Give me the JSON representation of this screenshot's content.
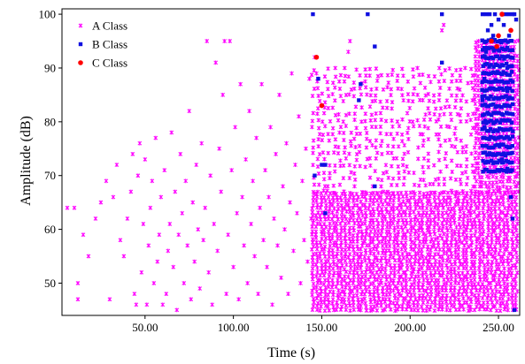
{
  "chart_data": {
    "type": "scatter",
    "xlabel": "Time (s)",
    "ylabel": "Amplitude (dB)",
    "xlim": [
      3,
      262
    ],
    "ylim": [
      44,
      101
    ],
    "xticks": [
      50,
      100,
      150,
      200,
      250
    ],
    "xtick_labels": [
      "50.00",
      "100.00",
      "150.00",
      "200.00",
      "250.00"
    ],
    "yticks": [
      50,
      60,
      70,
      80,
      90,
      100
    ],
    "ytick_labels": [
      "50",
      "60",
      "70",
      "80",
      "90",
      "100"
    ],
    "grid": false,
    "legend_position": "top-left",
    "series": [
      {
        "name": "A Class",
        "color": "#ff00ff",
        "marker": "star",
        "dense_regions": [
          {
            "x": [
              145,
              262
            ],
            "y": [
              45,
              67
            ],
            "x_step": 2.3,
            "y_step": 0.7
          },
          {
            "x": [
              145,
              237
            ],
            "y": [
              67,
              91
            ],
            "x_step": 3.0,
            "y_step": 1.2,
            "density": 0.7
          },
          {
            "x": [
              237,
              262
            ],
            "y": [
              67,
              95
            ],
            "x_step": 2.0,
            "y_step": 0.9
          }
        ],
        "points": [
          [
            6,
            64
          ],
          [
            10,
            64
          ],
          [
            12,
            50
          ],
          [
            12,
            47
          ],
          [
            15,
            59
          ],
          [
            18,
            55
          ],
          [
            22,
            62
          ],
          [
            25,
            65
          ],
          [
            28,
            69
          ],
          [
            30,
            47
          ],
          [
            32,
            66
          ],
          [
            34,
            72
          ],
          [
            36,
            58
          ],
          [
            38,
            55
          ],
          [
            40,
            62
          ],
          [
            42,
            67
          ],
          [
            43,
            74
          ],
          [
            44,
            48
          ],
          [
            45,
            46
          ],
          [
            46,
            70
          ],
          [
            47,
            76
          ],
          [
            48,
            52
          ],
          [
            49,
            61
          ],
          [
            50,
            73
          ],
          [
            51,
            46
          ],
          [
            52,
            57
          ],
          [
            53,
            64
          ],
          [
            54,
            69
          ],
          [
            55,
            50
          ],
          [
            56,
            77
          ],
          [
            57,
            54
          ],
          [
            58,
            59
          ],
          [
            59,
            66
          ],
          [
            60,
            46
          ],
          [
            61,
            71
          ],
          [
            62,
            48
          ],
          [
            63,
            56
          ],
          [
            64,
            61
          ],
          [
            65,
            78
          ],
          [
            66,
            53
          ],
          [
            67,
            67
          ],
          [
            68,
            45
          ],
          [
            69,
            59
          ],
          [
            70,
            74
          ],
          [
            71,
            63
          ],
          [
            72,
            50
          ],
          [
            73,
            69
          ],
          [
            74,
            57
          ],
          [
            75,
            82
          ],
          [
            76,
            47
          ],
          [
            77,
            65
          ],
          [
            78,
            54
          ],
          [
            79,
            72
          ],
          [
            80,
            60
          ],
          [
            81,
            49
          ],
          [
            82,
            76
          ],
          [
            83,
            58
          ],
          [
            84,
            64
          ],
          [
            85,
            95
          ],
          [
            86,
            52
          ],
          [
            87,
            70
          ],
          [
            88,
            46
          ],
          [
            89,
            61
          ],
          [
            90,
            91
          ],
          [
            91,
            56
          ],
          [
            92,
            75
          ],
          [
            93,
            67
          ],
          [
            94,
            85
          ],
          [
            95,
            95
          ],
          [
            96,
            48
          ],
          [
            97,
            59
          ],
          [
            98,
            95
          ],
          [
            99,
            71
          ],
          [
            100,
            53
          ],
          [
            101,
            79
          ],
          [
            102,
            63
          ],
          [
            103,
            47
          ],
          [
            104,
            87
          ],
          [
            105,
            66
          ],
          [
            106,
            57
          ],
          [
            107,
            73
          ],
          [
            108,
            50
          ],
          [
            109,
            82
          ],
          [
            110,
            61
          ],
          [
            111,
            69
          ],
          [
            112,
            55
          ],
          [
            113,
            77
          ],
          [
            114,
            48
          ],
          [
            115,
            64
          ],
          [
            116,
            87
          ],
          [
            117,
            58
          ],
          [
            118,
            71
          ],
          [
            119,
            53
          ],
          [
            120,
            66
          ],
          [
            121,
            79
          ],
          [
            122,
            46
          ],
          [
            123,
            62
          ],
          [
            124,
            74
          ],
          [
            125,
            57
          ],
          [
            126,
            85
          ],
          [
            127,
            51
          ],
          [
            128,
            68
          ],
          [
            129,
            60
          ],
          [
            130,
            76
          ],
          [
            131,
            48
          ],
          [
            132,
            65
          ],
          [
            133,
            89
          ],
          [
            134,
            56
          ],
          [
            135,
            72
          ],
          [
            136,
            63
          ],
          [
            137,
            81
          ],
          [
            138,
            50
          ],
          [
            139,
            69
          ],
          [
            140,
            58
          ],
          [
            141,
            75
          ],
          [
            142,
            54
          ],
          [
            143,
            88
          ],
          [
            144,
            62
          ],
          [
            146,
            92
          ],
          [
            147,
            89
          ],
          [
            148,
            88
          ],
          [
            165,
            93
          ],
          [
            166,
            95
          ],
          [
            218,
            97
          ],
          [
            219,
            98
          ]
        ]
      },
      {
        "name": "B Class",
        "color": "#1010e0",
        "marker": "square",
        "dense_regions": [
          {
            "x": [
              241,
              258
            ],
            "y": [
              71,
              95
            ],
            "x_step": 1.2,
            "y_step": 1.5
          }
        ],
        "points": [
          [
            145,
            100
          ],
          [
            146,
            70
          ],
          [
            148,
            88
          ],
          [
            150,
            72
          ],
          [
            152,
            72
          ],
          [
            152,
            63
          ],
          [
            176,
            100
          ],
          [
            172,
            87
          ],
          [
            171,
            84
          ],
          [
            180,
            94
          ],
          [
            180,
            68
          ],
          [
            218,
            100
          ],
          [
            218,
            91
          ],
          [
            241,
            100
          ],
          [
            243,
            100
          ],
          [
            244,
            97
          ],
          [
            245,
            100
          ],
          [
            246,
            98
          ],
          [
            247,
            96
          ],
          [
            248,
            100
          ],
          [
            250,
            99
          ],
          [
            252,
            100
          ],
          [
            253,
            98
          ],
          [
            254,
            100
          ],
          [
            256,
            100
          ],
          [
            258,
            100
          ],
          [
            259,
            100
          ],
          [
            260,
            99
          ],
          [
            255,
            90
          ],
          [
            256,
            96
          ],
          [
            243,
            93
          ],
          [
            242,
            88
          ],
          [
            241,
            84
          ],
          [
            242,
            79
          ],
          [
            247,
            74
          ],
          [
            252,
            73
          ],
          [
            256,
            71
          ],
          [
            257,
            66
          ],
          [
            258,
            62
          ],
          [
            259,
            45
          ]
        ]
      },
      {
        "name": "C Class",
        "color": "#ff0000",
        "marker": "circle",
        "points": [
          [
            147,
            92
          ],
          [
            150,
            83
          ],
          [
            252,
            100
          ],
          [
            260,
            101
          ],
          [
            257,
            97
          ],
          [
            250,
            96
          ],
          [
            246,
            95
          ],
          [
            249,
            94
          ]
        ]
      }
    ]
  }
}
